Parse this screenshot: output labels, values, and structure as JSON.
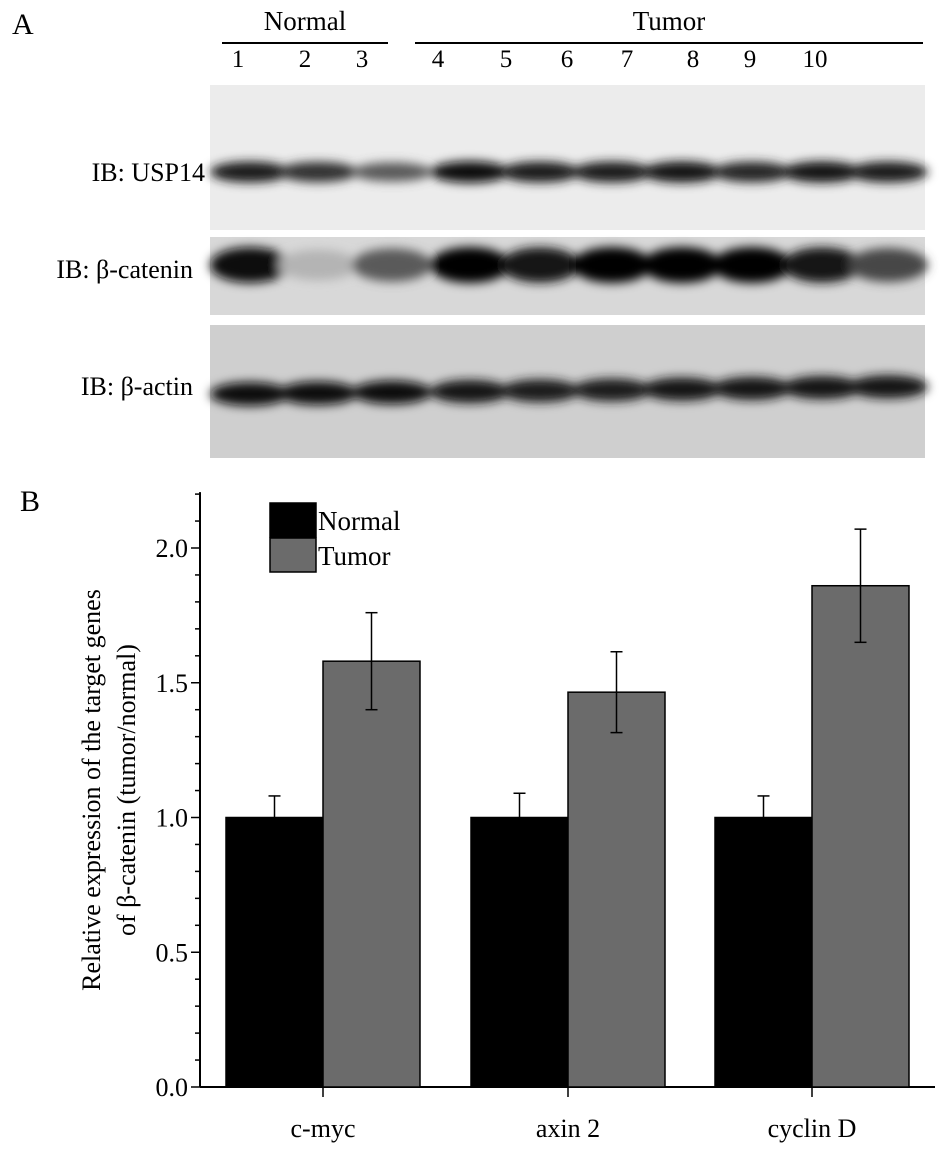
{
  "panel_a": {
    "letter": "A",
    "groups": [
      {
        "label": "Normal"
      },
      {
        "label": "Tumor"
      }
    ],
    "lanes": [
      "1",
      "2",
      "3",
      "4",
      "5",
      "6",
      "7",
      "8",
      "9",
      "10"
    ],
    "blots": [
      {
        "label": "IB: USP14",
        "band_intensity": [
          0.85,
          0.75,
          0.55,
          0.95,
          0.85,
          0.85,
          0.9,
          0.8,
          0.9,
          0.85
        ]
      },
      {
        "label": "IB: β-catenin",
        "band_intensity": [
          0.95,
          0.1,
          0.55,
          1.0,
          0.9,
          1.0,
          1.0,
          1.0,
          0.9,
          0.65
        ]
      },
      {
        "label": "IB: β-actin",
        "band_intensity": [
          0.95,
          0.95,
          0.95,
          0.9,
          0.85,
          0.85,
          0.9,
          0.9,
          0.9,
          0.9
        ]
      }
    ]
  },
  "panel_b": {
    "letter": "B"
  },
  "chart_data": {
    "type": "bar",
    "title": "",
    "xlabel": "",
    "ylabel_lines": [
      "Relative expression of the target  genes",
      "of β-catenin  (tumor/normal)"
    ],
    "categories": [
      "c-myc",
      "axin 2",
      "cyclin D"
    ],
    "ylim": [
      0,
      2.2
    ],
    "yticks": [
      "0.0",
      "0.5",
      "1.0",
      "1.5",
      "2.0"
    ],
    "grid": false,
    "legend_position": "top-left",
    "series": [
      {
        "name": "Normal",
        "color": "#000000",
        "values": [
          1.0,
          1.0,
          1.0
        ],
        "error": [
          0.08,
          0.09,
          0.08
        ]
      },
      {
        "name": "Tumor",
        "color": "#6b6b6b",
        "values": [
          1.58,
          1.465,
          1.86
        ],
        "error": [
          0.18,
          0.15,
          0.21
        ]
      }
    ]
  }
}
